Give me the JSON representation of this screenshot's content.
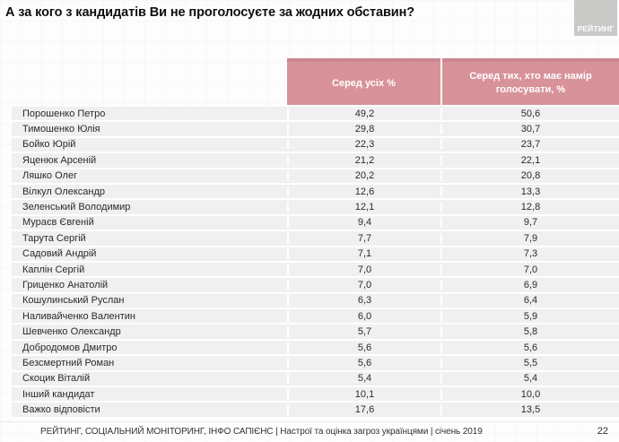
{
  "title": "А за кого з кандидатів Ви не проголосуєте за жодних обставин?",
  "logo": {
    "text": "РЕЙТИНГ"
  },
  "chart_data": {
    "type": "table",
    "title": "А за кого з кандидатів Ви не проголосуєте за жодних обставин?",
    "columns": [
      "Серед усіх %",
      "Серед тих, хто має намір голосувати, %"
    ],
    "rows": [
      {
        "name": "Порошенко Петро",
        "all": 49.2,
        "voters": 50.6
      },
      {
        "name": "Тимошенко Юлія",
        "all": 29.8,
        "voters": 30.7
      },
      {
        "name": "Бойко Юрій",
        "all": 22.3,
        "voters": 23.7
      },
      {
        "name": "Яценюк Арсеній",
        "all": 21.2,
        "voters": 22.1
      },
      {
        "name": "Ляшко Олег",
        "all": 20.2,
        "voters": 20.8
      },
      {
        "name": "Вілкул Олександр",
        "all": 12.6,
        "voters": 13.3
      },
      {
        "name": "Зеленський Володимир",
        "all": 12.1,
        "voters": 12.8
      },
      {
        "name": "Мураєв Євгеній",
        "all": 9.4,
        "voters": 9.7
      },
      {
        "name": "Тарута Сергій",
        "all": 7.7,
        "voters": 7.9
      },
      {
        "name": "Садовий Андрій",
        "all": 7.1,
        "voters": 7.3
      },
      {
        "name": "Каплін Сергій",
        "all": 7.0,
        "voters": 7.0
      },
      {
        "name": "Гриценко Анатолій",
        "all": 7.0,
        "voters": 6.9
      },
      {
        "name": "Кошулинський Руслан",
        "all": 6.3,
        "voters": 6.4
      },
      {
        "name": "Наливайченко Валентин",
        "all": 6.0,
        "voters": 5.9
      },
      {
        "name": "Шевченко Олександр",
        "all": 5.7,
        "voters": 5.8
      },
      {
        "name": "Добродомов Дмитро",
        "all": 5.6,
        "voters": 5.6
      },
      {
        "name": "Безсмертний Роман",
        "all": 5.6,
        "voters": 5.5
      },
      {
        "name": "Скоцик Віталій",
        "all": 5.4,
        "voters": 5.4
      },
      {
        "name": "Інший кандидат",
        "all": 10.1,
        "voters": 10.0
      },
      {
        "name": "Важко відповісти",
        "all": 17.6,
        "voters": 13.5
      }
    ],
    "decimal_separator": ",",
    "legend_position": "none",
    "grid": false
  },
  "footer": {
    "source": "РЕЙТИНГ, СОЦІАЛЬНИЙ МОНІТОРИНГ, ІНФО САПІЄНС | Настрої та оцінка загроз українцями | січень 2019",
    "page": "22"
  },
  "colors": {
    "header_bg": "#d8929a",
    "header_top_edge": "#cb8790",
    "row_bg": "#f0f0f1",
    "row_separator": "#ffffff",
    "logo_bg": "#c9c9c7",
    "title_text": "#0e0e0e"
  }
}
